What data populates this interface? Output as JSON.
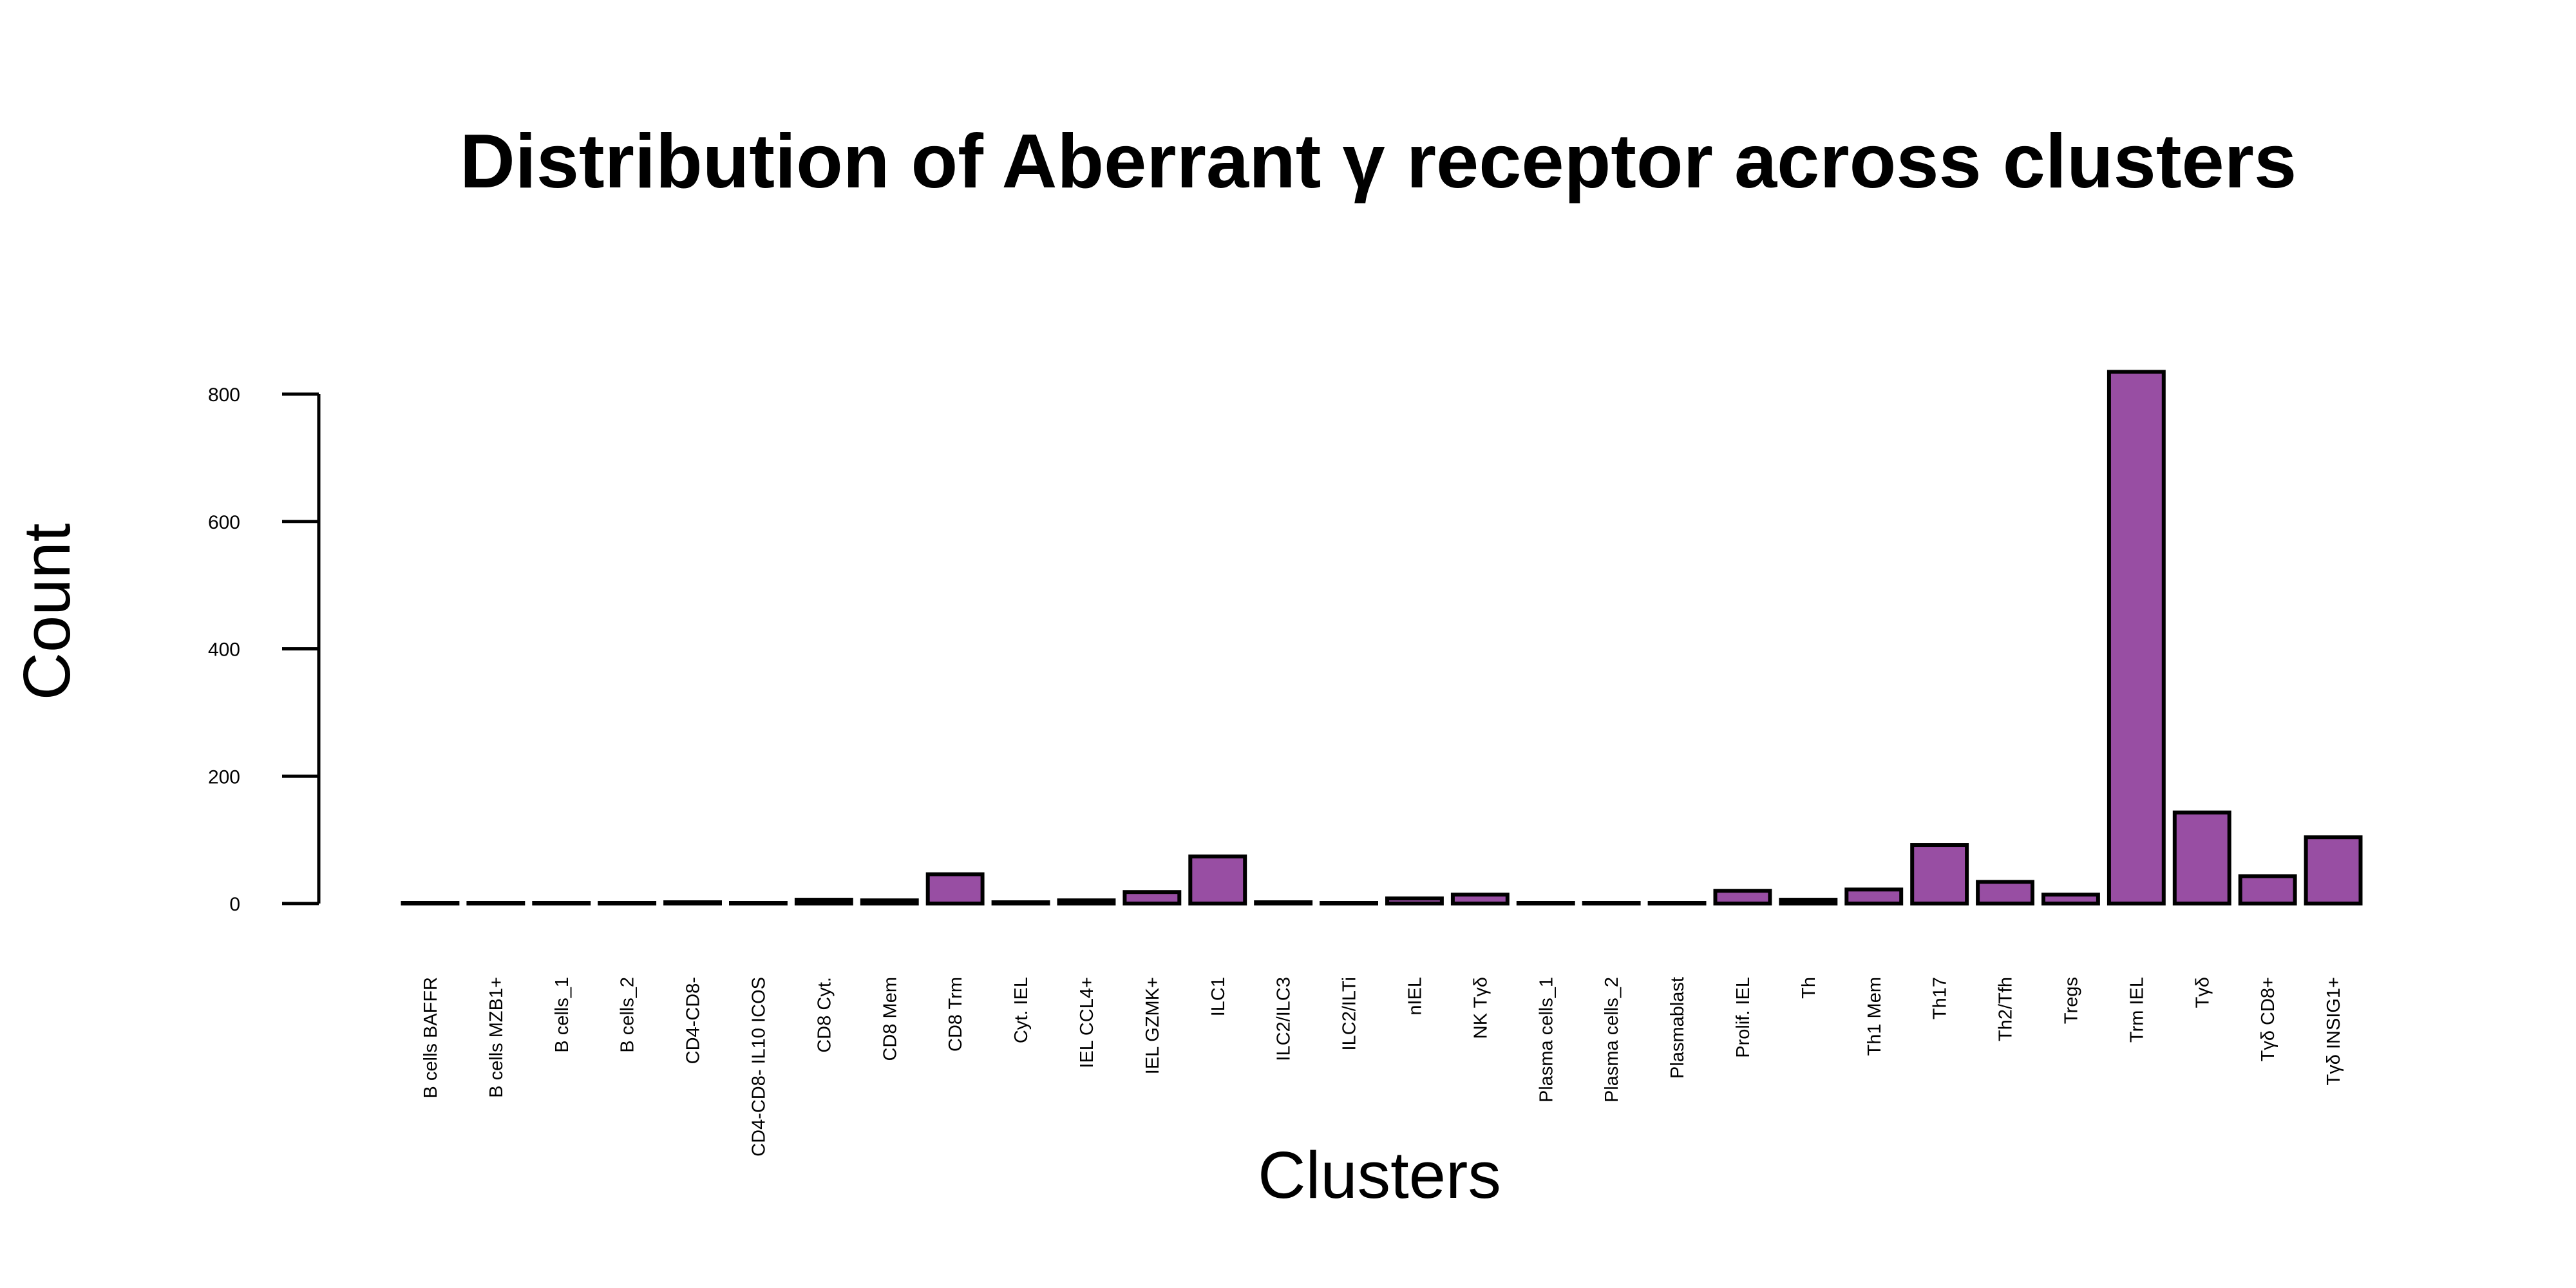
{
  "chart_data": {
    "type": "bar",
    "title": "Distribution of Aberrant γ receptor across clusters",
    "xlabel": "Clusters",
    "ylabel": "Count",
    "ylim": [
      0,
      800
    ],
    "yticks": [
      0,
      200,
      400,
      600,
      800
    ],
    "grid": false,
    "legend": "none",
    "bar_color": "#984EA3",
    "categories": [
      "B cells BAFFR",
      "B cells MZB1+",
      "B cells_1",
      "B cells_2",
      "CD4-CD8-",
      "CD4-CD8- IL10 ICOS",
      "CD8 Cyt.",
      "CD8 Mem",
      "CD8 Trm",
      "Cyt. IEL",
      "IEL CCL4+",
      "IEL GZMK+",
      "ILC1",
      "ILC2/ILC3",
      "ILC2/ILTi",
      "nIEL",
      "NK Tγδ",
      "Plasma cells_1",
      "Plasma cells_2",
      "Plasmablast",
      "Prolif. IEL",
      "Th",
      "Th1 Mem",
      "Th17",
      "Th2/Tfh",
      "Tregs",
      "Trm IEL",
      "Tγδ",
      "Tγδ CD8+",
      "Tγδ INSIG1+"
    ],
    "values": [
      1,
      1,
      1,
      1,
      2,
      1,
      6,
      5,
      46,
      2,
      5,
      18,
      74,
      2,
      1,
      8,
      14,
      1,
      1,
      1,
      20,
      6,
      22,
      92,
      34,
      14,
      835,
      143,
      43,
      104
    ]
  }
}
